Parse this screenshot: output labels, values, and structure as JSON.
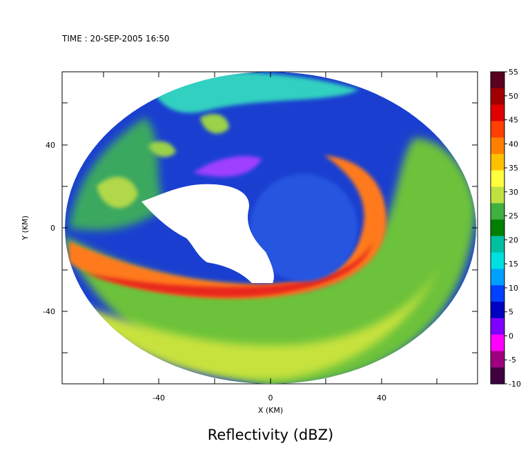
{
  "time_label": "TIME : 20-SEP-2005 16:50",
  "chart_data": {
    "type": "heatmap",
    "title": "Reflectivity (dBZ)",
    "xlabel": "X (KM)",
    "ylabel": "Y (KM)",
    "xlim": [
      -75,
      75
    ],
    "ylim": [
      -75,
      75
    ],
    "x_ticks": [
      -40,
      0,
      40
    ],
    "y_ticks": [
      40,
      0,
      -40
    ],
    "domain_shape": "circle",
    "domain_center": [
      0,
      0
    ],
    "domain_radius_km": 74,
    "eye_center": [
      0,
      -2
    ],
    "colorbar": {
      "min": -10,
      "max": 55,
      "ticks": [
        "55",
        "50",
        "45",
        "40",
        "35",
        "30",
        "25",
        "20",
        "15",
        "10",
        "5",
        "0",
        "-5",
        "-10"
      ],
      "colors": [
        "#5a0020",
        "#a00000",
        "#e00000",
        "#ff4000",
        "#ff8000",
        "#ffc000",
        "#ffff40",
        "#c0e040",
        "#40b040",
        "#008000",
        "#00c0a0",
        "#00e0e0",
        "#00a0ff",
        "#0040ff",
        "#0000c0",
        "#8000ff",
        "#ff00ff",
        "#a00080",
        "#400040"
      ]
    },
    "features": {
      "eyewall_peak_dBZ": 48,
      "eye_dBZ": 12,
      "outer_band_dBZ": 30
    }
  }
}
